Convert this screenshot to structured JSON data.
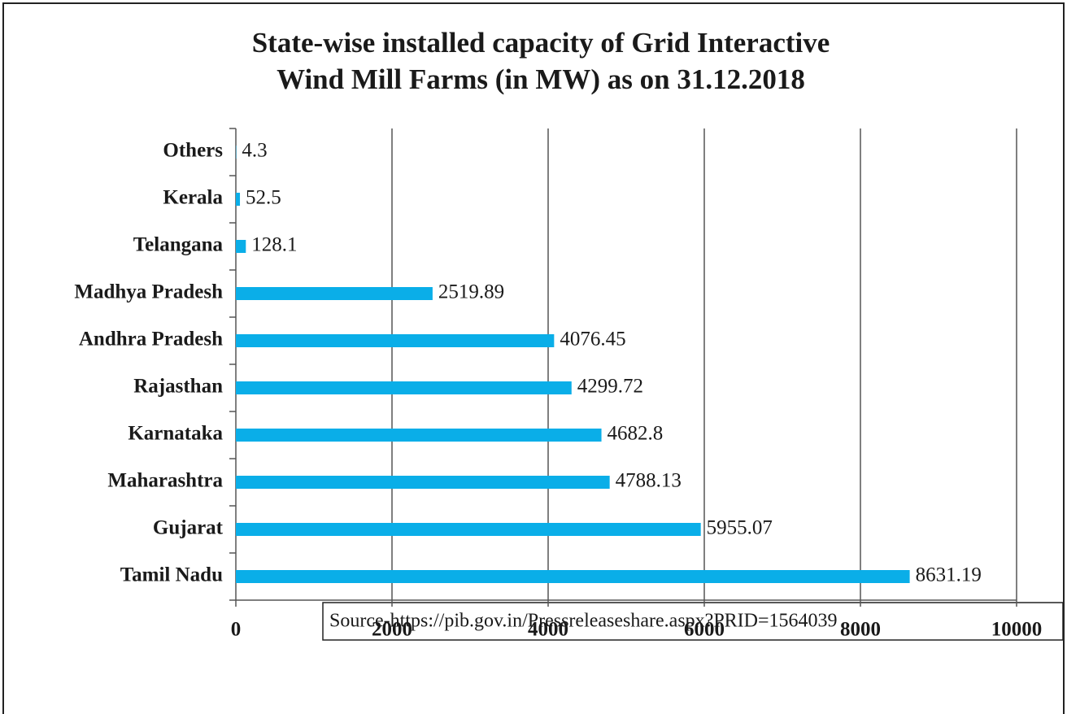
{
  "chart_data": {
    "type": "bar",
    "orientation": "horizontal",
    "title": [
      "State-wise installed capacity of Grid Interactive",
      "Wind Mill Farms (in MW) as on 31.12.2018"
    ],
    "categories": [
      "Others",
      "Kerala",
      "Telangana",
      "Madhya Pradesh",
      "Andhra Pradesh",
      "Rajasthan",
      "Karnataka",
      "Maharashtra",
      "Gujarat",
      "Tamil Nadu"
    ],
    "values": [
      4.3,
      52.5,
      128.1,
      2519.89,
      4076.45,
      4299.72,
      4682.8,
      4788.13,
      5955.07,
      8631.19
    ],
    "color": "#0aaee8",
    "xlim": [
      0,
      10000
    ],
    "xticks": [
      0,
      2000,
      4000,
      6000,
      8000,
      10000
    ],
    "grid": true,
    "source": "Source-https://pib.gov.in/Pressreleaseshare.aspx?PRID=1564039"
  }
}
